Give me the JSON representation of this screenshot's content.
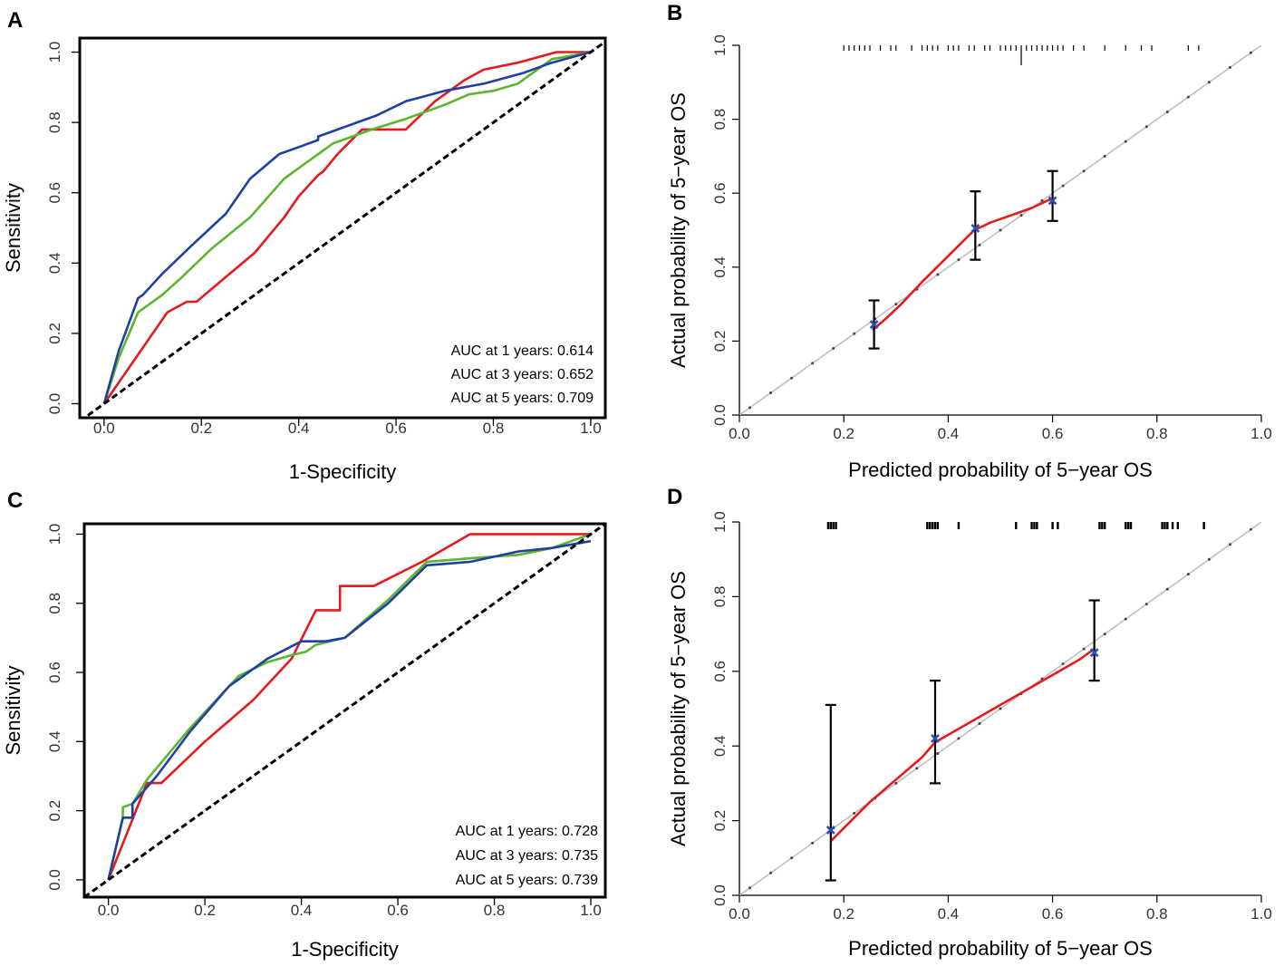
{
  "colors": {
    "red": "#e41a1c",
    "green": "#5bb52e",
    "blue": "#1f3fa3",
    "black": "#000000",
    "grey": "#bfbfbf",
    "point": "#2a4fb4"
  },
  "chart_data": [
    {
      "panel": "A",
      "type": "line",
      "xlabel": "1-Specificity",
      "ylabel": "Sensitivity",
      "xlim": [
        -0.05,
        1.03
      ],
      "ylim": [
        -0.04,
        1.04
      ],
      "xticks": [
        "0.0",
        "0.2",
        "0.4",
        "0.6",
        "0.8",
        "1.0"
      ],
      "yticks": [
        "0.0",
        "0.2",
        "0.4",
        "0.6",
        "0.8",
        "1.0"
      ],
      "legend_position": "bottom-right",
      "annotations": [
        "AUC at 1 years: 0.614",
        "AUC at 3 years: 0.652",
        "AUC at 5 years:  0.709"
      ],
      "series": [
        {
          "name": "1 years",
          "color": "red",
          "x": [
            0,
            0.05,
            0.1,
            0.13,
            0.17,
            0.19,
            0.25,
            0.31,
            0.37,
            0.4,
            0.44,
            0.45,
            0.48,
            0.53,
            0.55,
            0.58,
            0.62,
            0.65,
            0.68,
            0.74,
            0.78,
            0.85,
            0.93,
            0.97,
            1.0
          ],
          "y": [
            0,
            0.1,
            0.2,
            0.26,
            0.29,
            0.29,
            0.36,
            0.43,
            0.53,
            0.59,
            0.65,
            0.66,
            0.71,
            0.78,
            0.78,
            0.78,
            0.78,
            0.82,
            0.86,
            0.92,
            0.95,
            0.97,
            1.0,
            1.0,
            1.0
          ]
        },
        {
          "name": "3 years",
          "color": "green",
          "x": [
            0,
            0.03,
            0.07,
            0.1,
            0.12,
            0.16,
            0.22,
            0.3,
            0.37,
            0.42,
            0.47,
            0.55,
            0.62,
            0.7,
            0.75,
            0.8,
            0.85,
            0.92,
            1.0
          ],
          "y": [
            0,
            0.13,
            0.26,
            0.29,
            0.31,
            0.36,
            0.44,
            0.53,
            0.64,
            0.69,
            0.74,
            0.78,
            0.81,
            0.85,
            0.88,
            0.89,
            0.91,
            0.98,
            1.0
          ]
        },
        {
          "name": "5 years",
          "color": "blue",
          "x": [
            0,
            0.03,
            0.07,
            0.08,
            0.12,
            0.18,
            0.25,
            0.3,
            0.36,
            0.4,
            0.44,
            0.44,
            0.5,
            0.56,
            0.62,
            0.7,
            0.78,
            0.86,
            0.92,
            1.0
          ],
          "y": [
            0,
            0.15,
            0.3,
            0.31,
            0.37,
            0.45,
            0.54,
            0.64,
            0.71,
            0.73,
            0.75,
            0.76,
            0.79,
            0.82,
            0.86,
            0.89,
            0.91,
            0.94,
            0.97,
            1.0
          ]
        },
        {
          "name": "reference",
          "color": "black",
          "dashed": true,
          "x": [
            -0.05,
            1.03
          ],
          "y": [
            -0.05,
            1.03
          ]
        }
      ]
    },
    {
      "panel": "B",
      "type": "line",
      "xlabel": "Predicted probability of 5−year OS",
      "ylabel": "Actual probability of 5−year OS",
      "xlim": [
        0.0,
        1.0
      ],
      "ylim": [
        0.0,
        1.0
      ],
      "xticks": [
        "0.0",
        "0.2",
        "0.4",
        "0.6",
        "0.8",
        "1.0"
      ],
      "yticks": [
        "0.0",
        "0.2",
        "0.4",
        "0.6",
        "0.8",
        "1.0"
      ],
      "diagonal": true,
      "calibration_line": {
        "x": [
          0.255,
          0.28,
          0.31,
          0.35,
          0.4,
          0.45,
          0.48,
          0.52,
          0.56,
          0.59,
          0.6
        ],
        "y": [
          0.23,
          0.26,
          0.3,
          0.36,
          0.43,
          0.5,
          0.52,
          0.54,
          0.56,
          0.58,
          0.585
        ]
      },
      "points": [
        {
          "x": 0.258,
          "y": 0.245,
          "lower": 0.18,
          "upper": 0.31
        },
        {
          "x": 0.452,
          "y": 0.505,
          "lower": 0.42,
          "upper": 0.605
        },
        {
          "x": 0.6,
          "y": 0.58,
          "lower": 0.525,
          "upper": 0.66
        }
      ],
      "rug": [
        0.2,
        0.21,
        0.22,
        0.23,
        0.24,
        0.25,
        0.27,
        0.29,
        0.3,
        0.33,
        0.35,
        0.36,
        0.37,
        0.38,
        0.4,
        0.41,
        0.42,
        0.44,
        0.45,
        0.47,
        0.48,
        0.5,
        0.51,
        0.52,
        0.53,
        0.54,
        0.55,
        0.56,
        0.57,
        0.58,
        0.59,
        0.6,
        0.61,
        0.62,
        0.64,
        0.66,
        0.7,
        0.74,
        0.77,
        0.79,
        0.86,
        0.88
      ]
    },
    {
      "panel": "C",
      "type": "line",
      "xlabel": "1-Specificity",
      "ylabel": "Sensitivity",
      "xlim": [
        -0.05,
        1.03
      ],
      "ylim": [
        -0.05,
        1.03
      ],
      "xticks": [
        "0.0",
        "0.2",
        "0.4",
        "0.6",
        "0.8",
        "1.0"
      ],
      "yticks": [
        "0.0",
        "0.2",
        "0.4",
        "0.6",
        "0.8",
        "1.0"
      ],
      "legend_position": "bottom-right",
      "annotations": [
        "AUC at 1 years: 0.728",
        "AUC at 3 years: 0.735",
        "AUC at 5 years: 0.739"
      ],
      "series": [
        {
          "name": "1 years",
          "color": "red",
          "x": [
            0,
            0.08,
            0.11,
            0.2,
            0.3,
            0.38,
            0.43,
            0.48,
            0.48,
            0.55,
            0.65,
            0.75,
            1.0
          ],
          "y": [
            0,
            0.28,
            0.28,
            0.4,
            0.52,
            0.64,
            0.78,
            0.78,
            0.85,
            0.85,
            0.92,
            1.0,
            1.0
          ]
        },
        {
          "name": "3 years",
          "color": "green",
          "x": [
            0,
            0.03,
            0.03,
            0.05,
            0.08,
            0.17,
            0.27,
            0.33,
            0.38,
            0.41,
            0.43,
            0.49,
            0.58,
            0.66,
            0.75,
            0.85,
            0.92,
            1.0
          ],
          "y": [
            0,
            0.18,
            0.21,
            0.22,
            0.29,
            0.44,
            0.59,
            0.63,
            0.65,
            0.66,
            0.68,
            0.7,
            0.81,
            0.92,
            0.93,
            0.94,
            0.96,
            1.0
          ]
        },
        {
          "name": "5 years",
          "color": "blue",
          "x": [
            0,
            0.03,
            0.03,
            0.05,
            0.05,
            0.1,
            0.17,
            0.25,
            0.33,
            0.4,
            0.45,
            0.49,
            0.58,
            0.66,
            0.75,
            0.85,
            0.92,
            1.0
          ],
          "y": [
            0,
            0.18,
            0.18,
            0.18,
            0.22,
            0.3,
            0.43,
            0.56,
            0.64,
            0.69,
            0.69,
            0.7,
            0.8,
            0.91,
            0.92,
            0.95,
            0.96,
            0.98
          ]
        },
        {
          "name": "reference",
          "color": "black",
          "dashed": true,
          "x": [
            -0.05,
            1.03
          ],
          "y": [
            -0.05,
            1.03
          ]
        }
      ]
    },
    {
      "panel": "D",
      "type": "line",
      "xlabel": "Predicted probability of 5−year OS",
      "ylabel": "Actual probability of 5−year OS",
      "xlim": [
        0.0,
        1.0
      ],
      "ylim": [
        0.0,
        1.0
      ],
      "xticks": [
        "0.0",
        "0.2",
        "0.4",
        "0.6",
        "0.8",
        "1.0"
      ],
      "yticks": [
        "0.0",
        "0.2",
        "0.4",
        "0.6",
        "0.8",
        "1.0"
      ],
      "diagonal": true,
      "calibration_line": {
        "x": [
          0.175,
          0.2,
          0.25,
          0.3,
          0.35,
          0.375,
          0.45,
          0.55,
          0.6,
          0.65,
          0.68
        ],
        "y": [
          0.145,
          0.18,
          0.25,
          0.31,
          0.37,
          0.41,
          0.47,
          0.55,
          0.59,
          0.63,
          0.66
        ]
      },
      "points": [
        {
          "x": 0.175,
          "y": 0.175,
          "lower": 0.04,
          "upper": 0.51
        },
        {
          "x": 0.375,
          "y": 0.42,
          "lower": 0.3,
          "upper": 0.575
        },
        {
          "x": 0.68,
          "y": 0.65,
          "lower": 0.575,
          "upper": 0.79
        }
      ],
      "rug": [
        0.17,
        0.175,
        0.18,
        0.185,
        0.36,
        0.365,
        0.37,
        0.375,
        0.38,
        0.42,
        0.53,
        0.56,
        0.565,
        0.57,
        0.6,
        0.61,
        0.69,
        0.695,
        0.7,
        0.74,
        0.745,
        0.75,
        0.81,
        0.815,
        0.82,
        0.83,
        0.84,
        0.89
      ]
    }
  ]
}
